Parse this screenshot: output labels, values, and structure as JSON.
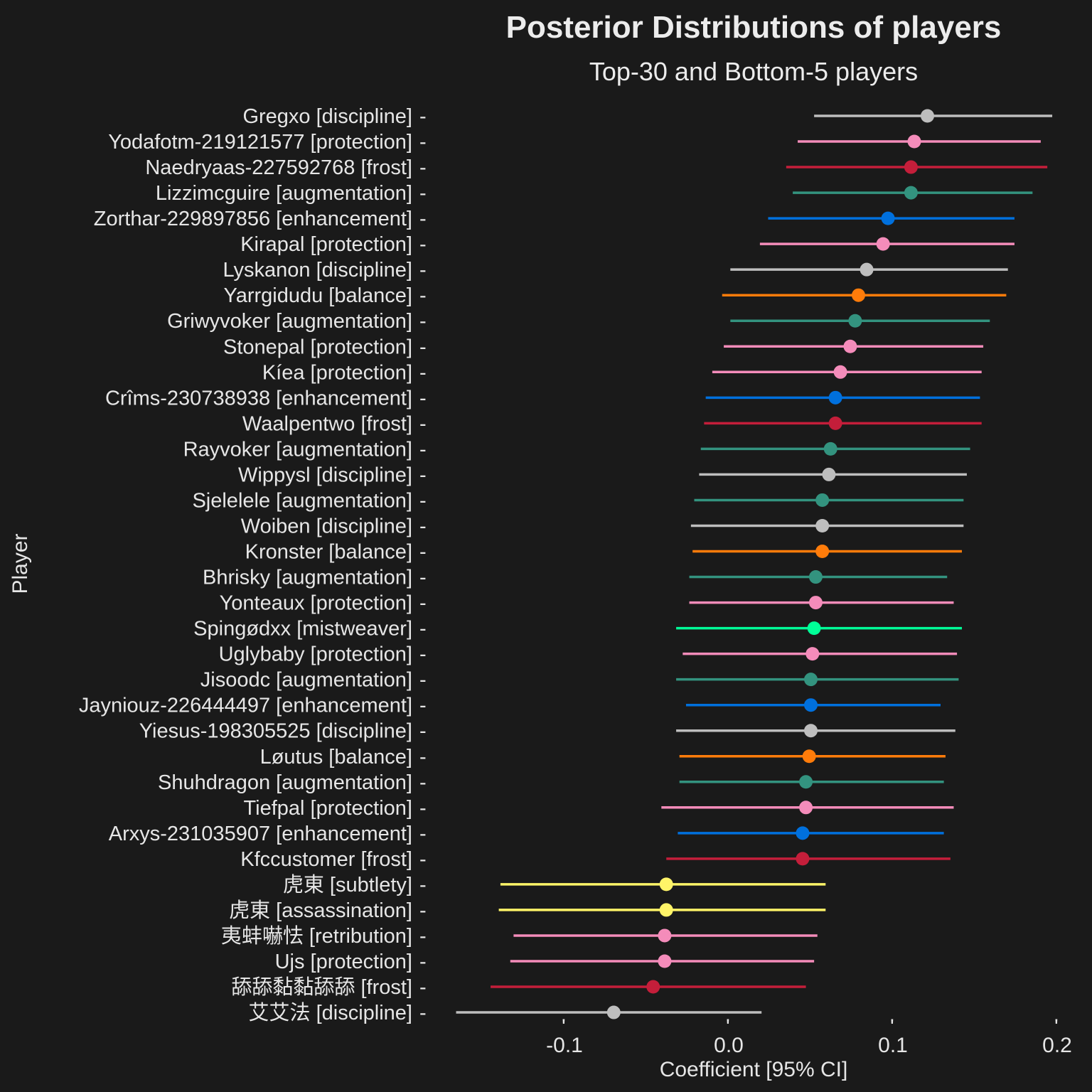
{
  "chart_data": {
    "type": "forest",
    "title": "Posterior Distributions of players",
    "subtitle": "Top-30 and Bottom-5 players",
    "xlabel": "Coefficient [95% CI]",
    "ylabel": "Player",
    "xlim": [
      -0.17,
      0.21
    ],
    "xticks": [
      -0.1,
      0.0,
      0.1,
      0.2
    ],
    "xtick_labels": [
      "-0.1",
      "0.0",
      "0.1",
      "0.2"
    ],
    "grid": false,
    "spec_colors": {
      "discipline": "#bebebe",
      "protection": "#f48cba",
      "retribution": "#f48cba",
      "frost": "#c41e3a",
      "augmentation": "#33937f",
      "enhancement": "#0070dd",
      "balance": "#ff7c0a",
      "mistweaver": "#00ff98",
      "subtlety": "#fff468",
      "assassination": "#fff468"
    },
    "players": [
      {
        "label": "Gregxo [discipline]",
        "spec": "discipline",
        "mean": 0.121,
        "lo": 0.052,
        "hi": 0.197
      },
      {
        "label": "Yodafotm-219121577 [protection]",
        "spec": "protection",
        "mean": 0.113,
        "lo": 0.042,
        "hi": 0.19
      },
      {
        "label": "Naedryaas-227592768 [frost]",
        "spec": "frost",
        "mean": 0.111,
        "lo": 0.035,
        "hi": 0.194
      },
      {
        "label": "Lizzimcguire [augmentation]",
        "spec": "augmentation",
        "mean": 0.111,
        "lo": 0.039,
        "hi": 0.185
      },
      {
        "label": "Zorthar-229897856 [enhancement]",
        "spec": "enhancement",
        "mean": 0.097,
        "lo": 0.024,
        "hi": 0.174
      },
      {
        "label": "Kirapal [protection]",
        "spec": "protection",
        "mean": 0.094,
        "lo": 0.019,
        "hi": 0.174
      },
      {
        "label": "Lyskanon [discipline]",
        "spec": "discipline",
        "mean": 0.084,
        "lo": 0.001,
        "hi": 0.17
      },
      {
        "label": "Yarrgidudu [balance]",
        "spec": "balance",
        "mean": 0.079,
        "lo": -0.004,
        "hi": 0.169
      },
      {
        "label": "Griwyvoker [augmentation]",
        "spec": "augmentation",
        "mean": 0.077,
        "lo": 0.001,
        "hi": 0.159
      },
      {
        "label": "Stonepal [protection]",
        "spec": "protection",
        "mean": 0.074,
        "lo": -0.003,
        "hi": 0.155
      },
      {
        "label": "Kíea [protection]",
        "spec": "protection",
        "mean": 0.068,
        "lo": -0.01,
        "hi": 0.154
      },
      {
        "label": "Crîms-230738938 [enhancement]",
        "spec": "enhancement",
        "mean": 0.065,
        "lo": -0.014,
        "hi": 0.153
      },
      {
        "label": "Waalpentwo [frost]",
        "spec": "frost",
        "mean": 0.065,
        "lo": -0.015,
        "hi": 0.154
      },
      {
        "label": "Rayvoker [augmentation]",
        "spec": "augmentation",
        "mean": 0.062,
        "lo": -0.017,
        "hi": 0.147
      },
      {
        "label": "Wippysl [discipline]",
        "spec": "discipline",
        "mean": 0.061,
        "lo": -0.018,
        "hi": 0.145
      },
      {
        "label": "Sjelelele [augmentation]",
        "spec": "augmentation",
        "mean": 0.057,
        "lo": -0.021,
        "hi": 0.143
      },
      {
        "label": "Woiben [discipline]",
        "spec": "discipline",
        "mean": 0.057,
        "lo": -0.023,
        "hi": 0.143
      },
      {
        "label": "Kronster [balance]",
        "spec": "balance",
        "mean": 0.057,
        "lo": -0.022,
        "hi": 0.142
      },
      {
        "label": "Bhrisky [augmentation]",
        "spec": "augmentation",
        "mean": 0.053,
        "lo": -0.024,
        "hi": 0.133
      },
      {
        "label": "Yonteaux [protection]",
        "spec": "protection",
        "mean": 0.053,
        "lo": -0.024,
        "hi": 0.137
      },
      {
        "label": "Spingødxx [mistweaver]",
        "spec": "mistweaver",
        "mean": 0.052,
        "lo": -0.032,
        "hi": 0.142
      },
      {
        "label": "Uglybaby [protection]",
        "spec": "protection",
        "mean": 0.051,
        "lo": -0.028,
        "hi": 0.139
      },
      {
        "label": "Jisoodc [augmentation]",
        "spec": "augmentation",
        "mean": 0.05,
        "lo": -0.032,
        "hi": 0.14
      },
      {
        "label": "Jayniouz-226444497 [enhancement]",
        "spec": "enhancement",
        "mean": 0.05,
        "lo": -0.026,
        "hi": 0.129
      },
      {
        "label": "Yiesus-198305525 [discipline]",
        "spec": "discipline",
        "mean": 0.05,
        "lo": -0.032,
        "hi": 0.138
      },
      {
        "label": "Løutus [balance]",
        "spec": "balance",
        "mean": 0.049,
        "lo": -0.03,
        "hi": 0.132
      },
      {
        "label": "Shuhdragon [augmentation]",
        "spec": "augmentation",
        "mean": 0.047,
        "lo": -0.03,
        "hi": 0.131
      },
      {
        "label": "Tiefpal [protection]",
        "spec": "protection",
        "mean": 0.047,
        "lo": -0.041,
        "hi": 0.137
      },
      {
        "label": "Arxys-231035907 [enhancement]",
        "spec": "enhancement",
        "mean": 0.045,
        "lo": -0.031,
        "hi": 0.131
      },
      {
        "label": "Kfccustomer [frost]",
        "spec": "frost",
        "mean": 0.045,
        "lo": -0.038,
        "hi": 0.135
      },
      {
        "label": "虎東 [subtlety]",
        "spec": "subtlety",
        "mean": -0.038,
        "lo": -0.139,
        "hi": 0.059
      },
      {
        "label": "虎東 [assassination]",
        "spec": "assassination",
        "mean": -0.038,
        "lo": -0.14,
        "hi": 0.059
      },
      {
        "label": "夷蚌嚇怯 [retribution]",
        "spec": "retribution",
        "mean": -0.039,
        "lo": -0.131,
        "hi": 0.054
      },
      {
        "label": "Ujs [protection]",
        "spec": "protection",
        "mean": -0.039,
        "lo": -0.133,
        "hi": 0.052
      },
      {
        "label": "舔舔黏黏舔舔 [frost]",
        "spec": "frost",
        "mean": -0.046,
        "lo": -0.145,
        "hi": 0.047
      },
      {
        "label": "艾艾法 [discipline]",
        "spec": "discipline",
        "mean": -0.07,
        "lo": -0.166,
        "hi": 0.02
      }
    ]
  }
}
